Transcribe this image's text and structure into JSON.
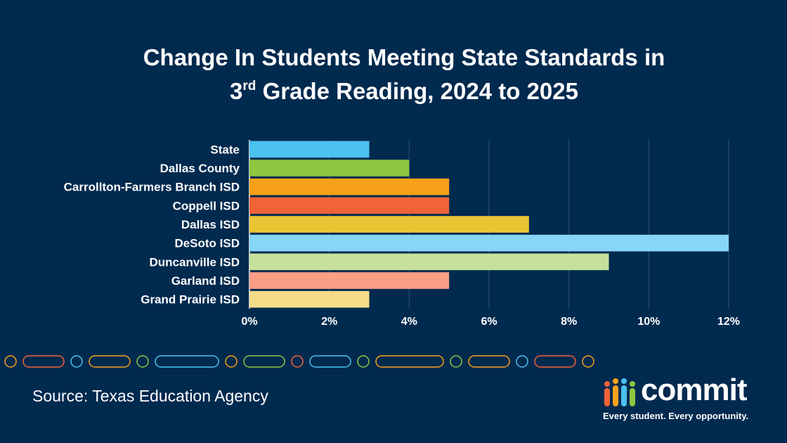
{
  "title": {
    "prefix": "Change In Students Meeting State Standards in",
    "grade_num": "3",
    "grade_sup": "rd",
    "suffix": "Grade Reading, 2024 to 2025"
  },
  "chart_data": {
    "type": "bar",
    "orientation": "horizontal",
    "categories": [
      "State",
      "Dallas County",
      "Carrollton-Farmers Branch ISD",
      "Coppell ISD",
      "Dallas ISD",
      "DeSoto ISD",
      "Duncanville ISD",
      "Garland ISD",
      "Grand Prairie ISD"
    ],
    "values": [
      3,
      4,
      5,
      5,
      7,
      12,
      9,
      5,
      3
    ],
    "colors": [
      "#4cc2ef",
      "#8dc63f",
      "#f7a11a",
      "#f26338",
      "#eac433",
      "#86d6f7",
      "#c6e19b",
      "#fa9e86",
      "#f6dc86"
    ],
    "xlim": [
      0,
      12
    ],
    "xticks": [
      0,
      2,
      4,
      6,
      8,
      10,
      12
    ],
    "xtick_labels": [
      "0%",
      "2%",
      "4%",
      "6%",
      "8%",
      "10%",
      "12%"
    ],
    "xlabel": "",
    "ylabel": "",
    "grid": "vertical"
  },
  "decoration": {
    "pill_colors": [
      "#f7a11a",
      "#f26338",
      "#4cc2ef",
      "#f7a11a",
      "#8dc63f",
      "#4cc2ef",
      "#f7a11a",
      "#8dc63f",
      "#f26338",
      "#4cc2ef",
      "#8dc63f",
      "#f7a11a",
      "#8dc63f",
      "#f7a11a",
      "#4cc2ef",
      "#f26338",
      "#f7a11a"
    ]
  },
  "source": "Source: Texas Education Agency",
  "brand": {
    "name": "commit",
    "tagline": "Every student. Every opportunity.",
    "icon": "people-bars-icon",
    "icon_colors": [
      "#f26338",
      "#f7a11a",
      "#4cc2ef",
      "#8dc63f"
    ]
  }
}
